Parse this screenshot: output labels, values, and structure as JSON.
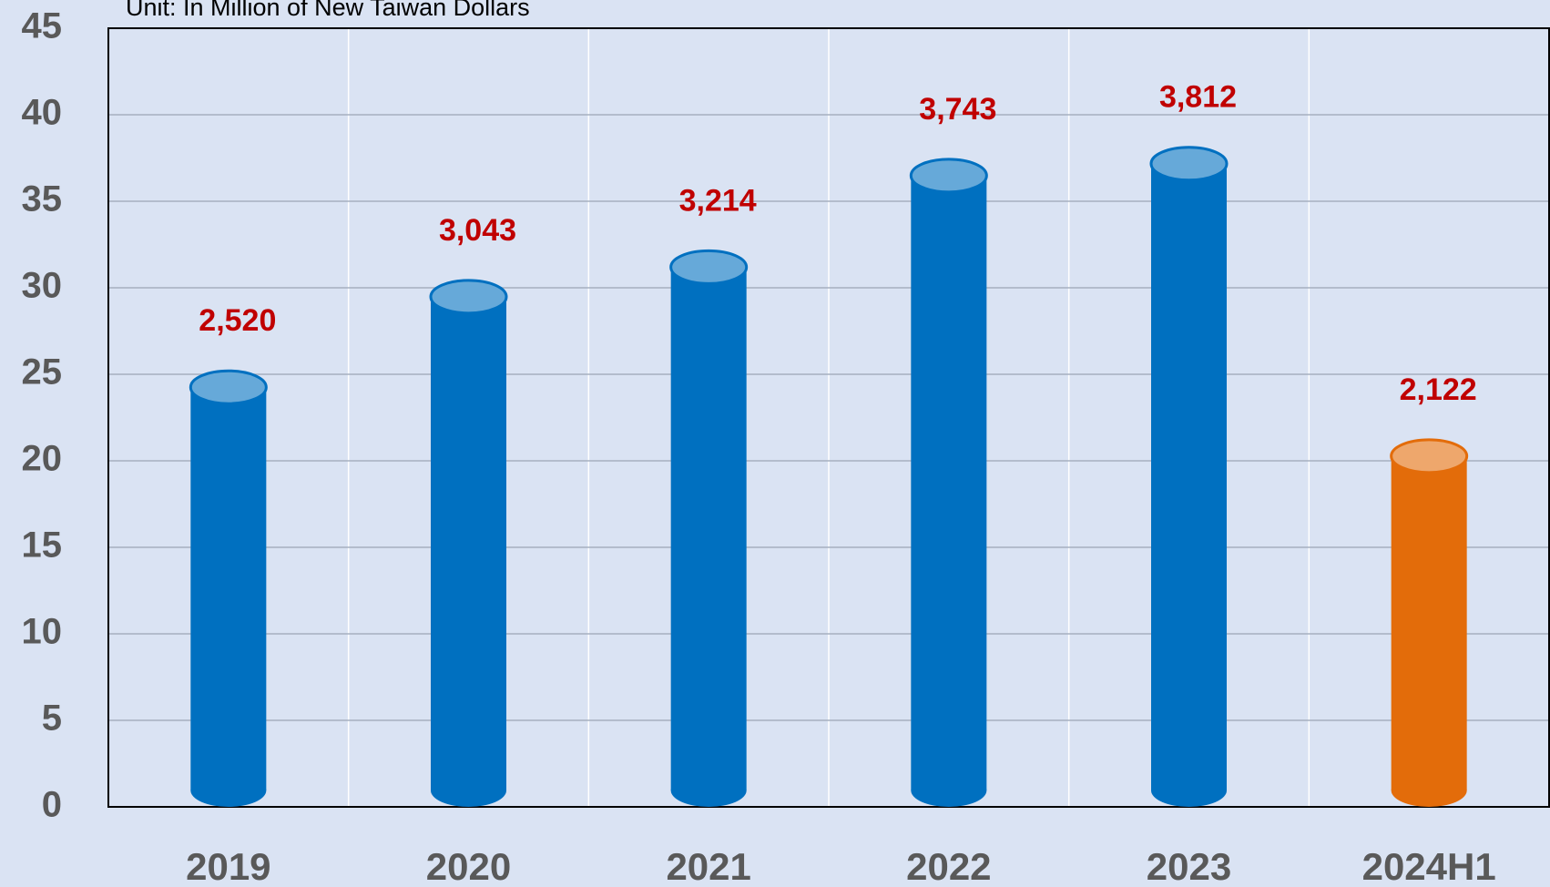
{
  "chart_data": {
    "type": "bar",
    "subtitle": "Unit: In Million of New Taiwan Dollars",
    "categories": [
      "2019",
      "2020",
      "2021",
      "2022",
      "2023",
      "2024H1"
    ],
    "values": [
      25.2,
      30.43,
      32.14,
      37.43,
      38.12,
      21.22
    ],
    "value_labels": [
      "2,520",
      "3,043",
      "3,214",
      "3,743",
      "3,812",
      "2,122"
    ],
    "colors": [
      "#0070c0",
      "#0070c0",
      "#0070c0",
      "#0070c0",
      "#0070c0",
      "#e36c0a"
    ],
    "ylim": [
      0,
      45
    ],
    "yticks": [
      0,
      5,
      10,
      15,
      20,
      25,
      30,
      35,
      40,
      45
    ],
    "grid": true
  }
}
